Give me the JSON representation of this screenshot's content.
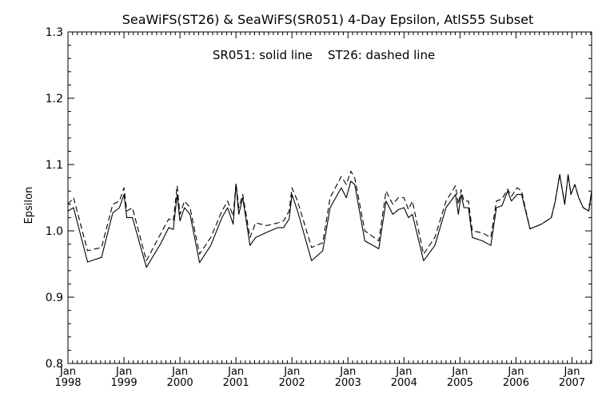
{
  "chart_data": {
    "type": "line",
    "title": "SeaWiFS(ST26) & SeaWiFS(SR051) 4-Day Epsilon, AtlS55 Subset",
    "legend_text": "SR051: solid line    ST26: dashed line",
    "ylabel": "Epsilon",
    "xlabel": "",
    "ylim": [
      0.8,
      1.3
    ],
    "xlim": [
      1998.0,
      2007.35
    ],
    "y_ticks": [
      "0.8",
      "0.9",
      "1.0",
      "1.1",
      "1.2",
      "1.3"
    ],
    "x_ticks": [
      {
        "month": "Jan",
        "year": "1998"
      },
      {
        "month": "Jan",
        "year": "1999"
      },
      {
        "month": "Jan",
        "year": "2000"
      },
      {
        "month": "Jan",
        "year": "2001"
      },
      {
        "month": "Jan",
        "year": "2002"
      },
      {
        "month": "Jan",
        "year": "2003"
      },
      {
        "month": "Jan",
        "year": "2004"
      },
      {
        "month": "Jan",
        "year": "2005"
      },
      {
        "month": "Jan",
        "year": "2006"
      },
      {
        "month": "Jan",
        "year": "2007"
      }
    ],
    "grid": false,
    "series": [
      {
        "name": "SR051",
        "style": "solid",
        "color": "#000000",
        "x": [
          1998.0,
          1998.1,
          1998.35,
          1998.6,
          1998.8,
          1998.92,
          1999.0,
          1999.05,
          1999.15,
          1999.4,
          1999.65,
          1999.8,
          1999.88,
          1999.95,
          2000.0,
          2000.08,
          2000.18,
          2000.35,
          2000.55,
          2000.75,
          2000.85,
          2000.95,
          2001.0,
          2001.05,
          2001.12,
          2001.25,
          2001.35,
          2001.55,
          2001.75,
          2001.85,
          2001.95,
          2002.0,
          2002.1,
          2002.35,
          2002.55,
          2002.68,
          2002.88,
          2002.97,
          2003.05,
          2003.12,
          2003.3,
          2003.55,
          2003.68,
          2003.8,
          2003.9,
          2004.0,
          2004.08,
          2004.15,
          2004.35,
          2004.55,
          2004.75,
          2004.92,
          2004.97,
          2005.02,
          2005.07,
          2005.15,
          2005.22,
          2005.4,
          2005.55,
          2005.65,
          2005.75,
          2005.85,
          2005.92,
          2006.02,
          2006.1,
          2006.25,
          2006.45,
          2006.63,
          2006.7,
          2006.78,
          2006.87,
          2006.93,
          2006.98,
          2007.05,
          2007.12,
          2007.2,
          2007.3,
          2007.35
        ],
        "values": [
          1.03,
          1.035,
          0.953,
          0.96,
          1.027,
          1.035,
          1.055,
          1.02,
          1.02,
          0.945,
          0.98,
          1.005,
          1.002,
          1.055,
          1.015,
          1.035,
          1.025,
          0.952,
          0.978,
          1.02,
          1.035,
          1.01,
          1.07,
          1.025,
          1.05,
          0.978,
          0.99,
          0.998,
          1.005,
          1.005,
          1.018,
          1.055,
          1.03,
          0.955,
          0.97,
          1.035,
          1.065,
          1.05,
          1.075,
          1.07,
          0.985,
          0.973,
          1.045,
          1.025,
          1.032,
          1.035,
          1.02,
          1.025,
          0.955,
          0.978,
          1.035,
          1.055,
          1.025,
          1.055,
          1.035,
          1.035,
          0.99,
          0.985,
          0.978,
          1.035,
          1.038,
          1.06,
          1.045,
          1.055,
          1.055,
          1.003,
          1.01,
          1.02,
          1.045,
          1.085,
          1.04,
          1.085,
          1.055,
          1.07,
          1.05,
          1.035,
          1.03,
          1.06
        ]
      },
      {
        "name": "ST26",
        "style": "dashed",
        "color": "#000000",
        "x": [
          1998.0,
          1998.1,
          1998.35,
          1998.6,
          1998.8,
          1998.92,
          1999.0,
          1999.05,
          1999.15,
          1999.4,
          1999.65,
          1999.8,
          1999.88,
          1999.95,
          2000.0,
          2000.08,
          2000.18,
          2000.35,
          2000.55,
          2000.75,
          2000.85,
          2000.95,
          2001.0,
          2001.05,
          2001.12,
          2001.25,
          2001.35,
          2001.55,
          2001.75,
          2001.85,
          2001.95,
          2002.0,
          2002.1,
          2002.35,
          2002.55,
          2002.68,
          2002.88,
          2002.97,
          2003.05,
          2003.12,
          2003.3,
          2003.55,
          2003.68,
          2003.8,
          2003.9,
          2004.0,
          2004.08,
          2004.15,
          2004.35,
          2004.55,
          2004.75,
          2004.92,
          2004.97,
          2005.02,
          2005.07,
          2005.15,
          2005.22,
          2005.4,
          2005.55,
          2005.65,
          2005.75,
          2005.85,
          2005.92,
          2006.02,
          2006.1,
          2006.25,
          2006.45,
          2006.63,
          2006.7,
          2006.78,
          2006.87,
          2006.93,
          2006.98,
          2007.05,
          2007.12,
          2007.2,
          2007.3,
          2007.35
        ],
        "values": [
          1.04,
          1.05,
          0.97,
          0.975,
          1.04,
          1.045,
          1.065,
          1.03,
          1.035,
          0.955,
          0.995,
          1.018,
          1.015,
          1.068,
          1.025,
          1.045,
          1.035,
          0.965,
          0.99,
          1.03,
          1.045,
          1.022,
          1.072,
          1.035,
          1.055,
          0.99,
          1.012,
          1.008,
          1.012,
          1.015,
          1.03,
          1.065,
          1.045,
          0.975,
          0.982,
          1.05,
          1.082,
          1.07,
          1.09,
          1.08,
          1.0,
          0.985,
          1.06,
          1.04,
          1.05,
          1.05,
          1.032,
          1.045,
          0.965,
          0.99,
          1.045,
          1.068,
          1.04,
          1.062,
          1.045,
          1.045,
          1.0,
          0.997,
          0.99,
          1.045,
          1.048,
          1.063,
          1.052,
          1.065,
          1.06,
          1.003,
          1.01,
          1.02,
          1.045,
          1.085,
          1.04,
          1.085,
          1.055,
          1.07,
          1.05,
          1.035,
          1.03,
          1.06
        ]
      }
    ]
  }
}
